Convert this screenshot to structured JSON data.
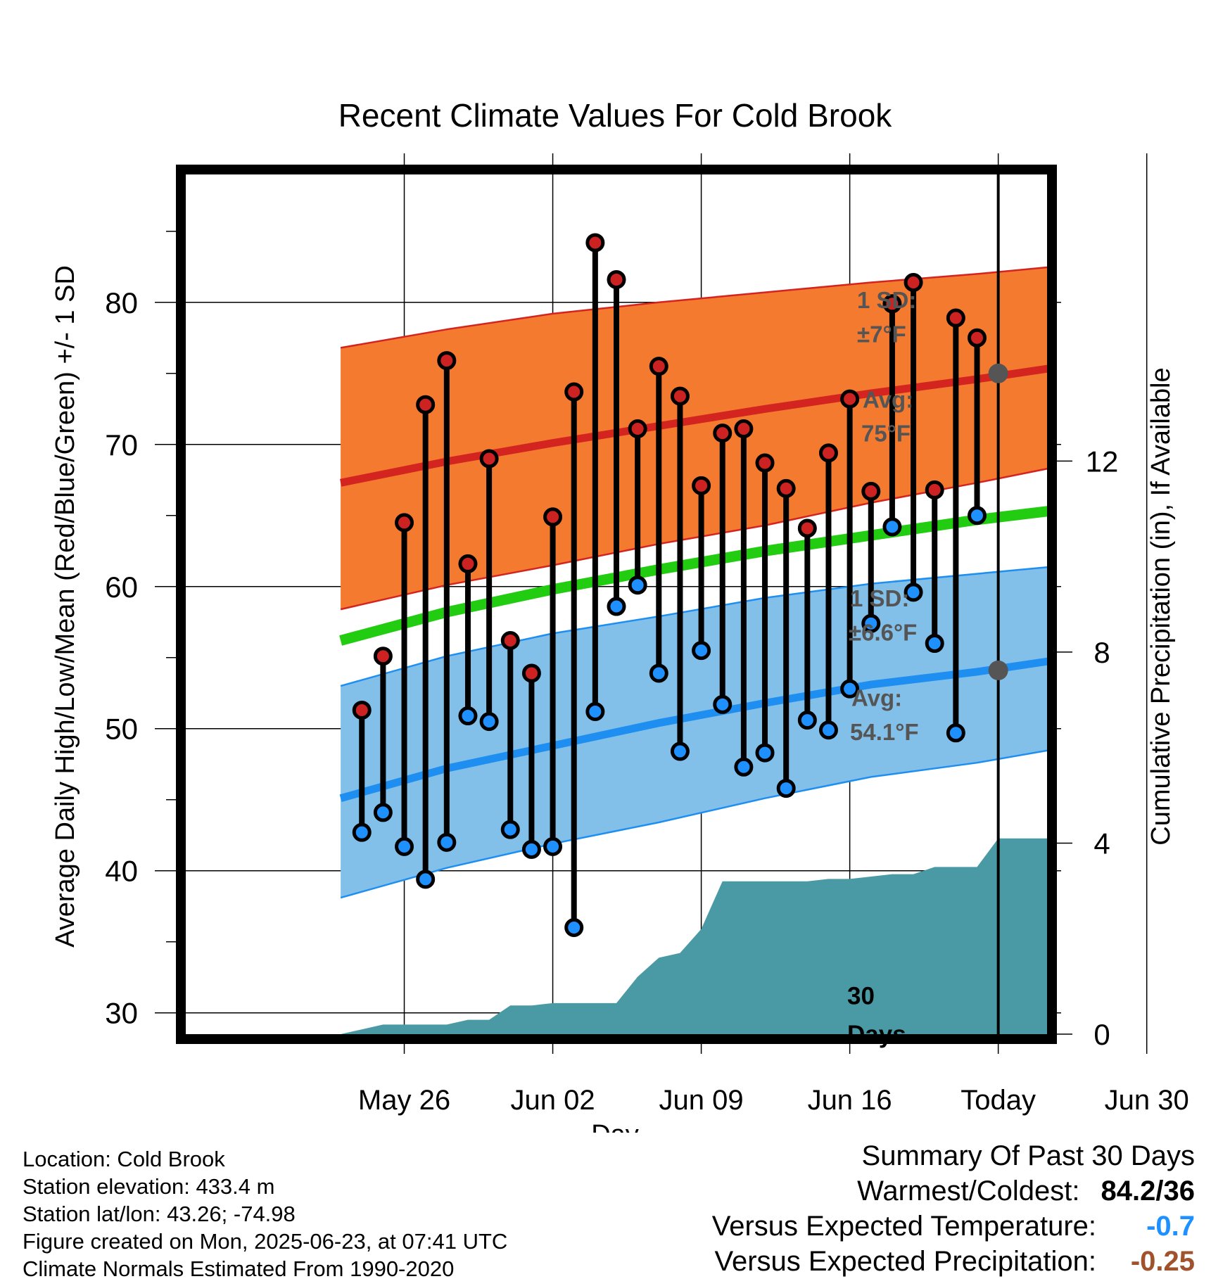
{
  "chart_data": {
    "type": "line",
    "title": "Recent Climate Values For Cold Brook",
    "xlabel": "Day",
    "ylabel": "Average Daily High/Low/Mean (Red/Blue/Green) +/- 1 SD",
    "y2label": "Cumulative Precipitation (in), If Available",
    "ylim": [
      28.5,
      89
    ],
    "y2lim": [
      0,
      18
    ],
    "xlim": [
      -5.3,
      35.3
    ],
    "x_start_date": "2025-05-21",
    "x_ticks": [
      {
        "x": 5,
        "label": "May 26"
      },
      {
        "x": 12,
        "label": "Jun 02"
      },
      {
        "x": 19,
        "label": "Jun 09"
      },
      {
        "x": 26,
        "label": "Jun 16"
      },
      {
        "x": 33,
        "label": "Today"
      },
      {
        "x": 40,
        "label": "Jun 30"
      }
    ],
    "y_ticks": [
      30,
      40,
      50,
      60,
      70,
      80
    ],
    "y2_ticks": [
      0,
      4,
      8,
      12
    ],
    "grid": true,
    "days": [
      3,
      4,
      5,
      6,
      7,
      8,
      9,
      10,
      11,
      12,
      13,
      14,
      15,
      16,
      17,
      18,
      19,
      20,
      21,
      22,
      23,
      24,
      25,
      26,
      27,
      28,
      29,
      30,
      31,
      32
    ],
    "daily_high": [
      51.3,
      55.1,
      64.5,
      72.8,
      75.9,
      61.6,
      69.0,
      56.2,
      53.9,
      64.9,
      73.7,
      84.2,
      81.6,
      71.1,
      75.5,
      73.4,
      67.1,
      70.8,
      71.1,
      68.7,
      66.9,
      64.1,
      69.4,
      73.2,
      66.7,
      79.9,
      81.4,
      66.8,
      78.9,
      77.5
    ],
    "daily_low": [
      42.7,
      44.1,
      41.7,
      39.4,
      42.0,
      50.9,
      50.5,
      42.9,
      41.5,
      41.7,
      36.0,
      51.2,
      58.6,
      60.1,
      53.9,
      48.4,
      55.5,
      51.7,
      47.3,
      48.3,
      45.8,
      50.6,
      49.9,
      52.8,
      57.4,
      64.2,
      59.6,
      56.0,
      49.7,
      65.0
    ],
    "normal_high": {
      "x": [
        2,
        7,
        12,
        17,
        22,
        27,
        32,
        37,
        42
      ],
      "mean": [
        67.3,
        68.8,
        70.1,
        71.3,
        72.5,
        73.6,
        74.6,
        75.7,
        76.8
      ],
      "upper": [
        76.8,
        78.1,
        79.2,
        80.0,
        80.7,
        81.4,
        82.0,
        82.7,
        83.2
      ],
      "lower": [
        58.4,
        60.1,
        61.5,
        63.0,
        64.3,
        65.9,
        67.3,
        68.8,
        70.1
      ]
    },
    "normal_mean": {
      "x": [
        2,
        7,
        12,
        17,
        22,
        27,
        32,
        37,
        42
      ],
      "values": [
        56.2,
        58.2,
        59.8,
        61.2,
        62.5,
        63.6,
        64.7,
        65.6,
        66.4
      ]
    },
    "normal_low": {
      "x": [
        2,
        7,
        12,
        17,
        22,
        27,
        32,
        37,
        42
      ],
      "mean": [
        45.1,
        47.2,
        48.8,
        50.4,
        51.8,
        53.1,
        54.0,
        55.1,
        55.9
      ],
      "upper": [
        53.0,
        55.1,
        56.7,
        57.9,
        59.2,
        60.2,
        60.9,
        61.6,
        62.1
      ],
      "lower": [
        38.1,
        40.2,
        41.9,
        43.4,
        45.1,
        46.6,
        47.6,
        48.9,
        49.9
      ]
    },
    "precip": {
      "x": [
        2,
        3,
        4,
        5,
        6,
        7,
        8,
        9,
        10,
        11,
        12,
        13,
        14,
        15,
        16,
        17,
        18,
        19,
        20,
        21,
        22,
        23,
        24,
        25,
        26,
        27,
        28,
        29,
        30,
        31,
        32,
        33,
        34,
        38,
        42
      ],
      "values": [
        0.0,
        0.1,
        0.2,
        0.2,
        0.2,
        0.2,
        0.3,
        0.3,
        0.6,
        0.6,
        0.65,
        0.65,
        0.65,
        0.65,
        1.2,
        1.6,
        1.7,
        2.2,
        3.2,
        3.2,
        3.2,
        3.2,
        3.2,
        3.25,
        3.25,
        3.3,
        3.35,
        3.35,
        3.5,
        3.5,
        3.5,
        4.1,
        4.1,
        4.1,
        4.1
      ]
    },
    "today_x": 33,
    "today_label": [
      "30",
      "Days"
    ],
    "today_high": 75,
    "today_low": 54.1,
    "annotations": {
      "high_sd": [
        "1 SD:",
        "±7°F"
      ],
      "high_avg": [
        "Avg:",
        "75°F"
      ],
      "low_sd": [
        "1 SD:",
        "±6.6°F"
      ],
      "low_avg": [
        "Avg:",
        "54.1°F"
      ]
    },
    "colors": {
      "high_band": "#f47a2f",
      "high_line": "#d42420",
      "mean_line": "#22cc11",
      "low_band": "#82c0ea",
      "low_line": "#1e8ff0",
      "precip": "#4a9aa5",
      "marker_high": "#cc2222",
      "marker_low": "#1e90ff",
      "annotation": "#555555"
    }
  },
  "footer": {
    "location": "Location: Cold Brook",
    "elevation": "Station elevation: 433.4 m",
    "latlon": "Station lat/lon: 43.26; -74.98",
    "created": "Figure created on Mon, 2025-06-23, at 07:41 UTC",
    "normals": "Climate Normals Estimated From 1990-2020"
  },
  "summary": {
    "title": "Summary Of Past 30 Days",
    "warmest_label": "Warmest/Coldest:",
    "warmest_value": "84.2/36",
    "temp_label": "Versus Expected Temperature:",
    "temp_value": "-0.7",
    "temp_color": "#1e90ff",
    "precip_label": "Versus Expected Precipitation:",
    "precip_value": "-0.25",
    "precip_color": "#a0522d"
  }
}
